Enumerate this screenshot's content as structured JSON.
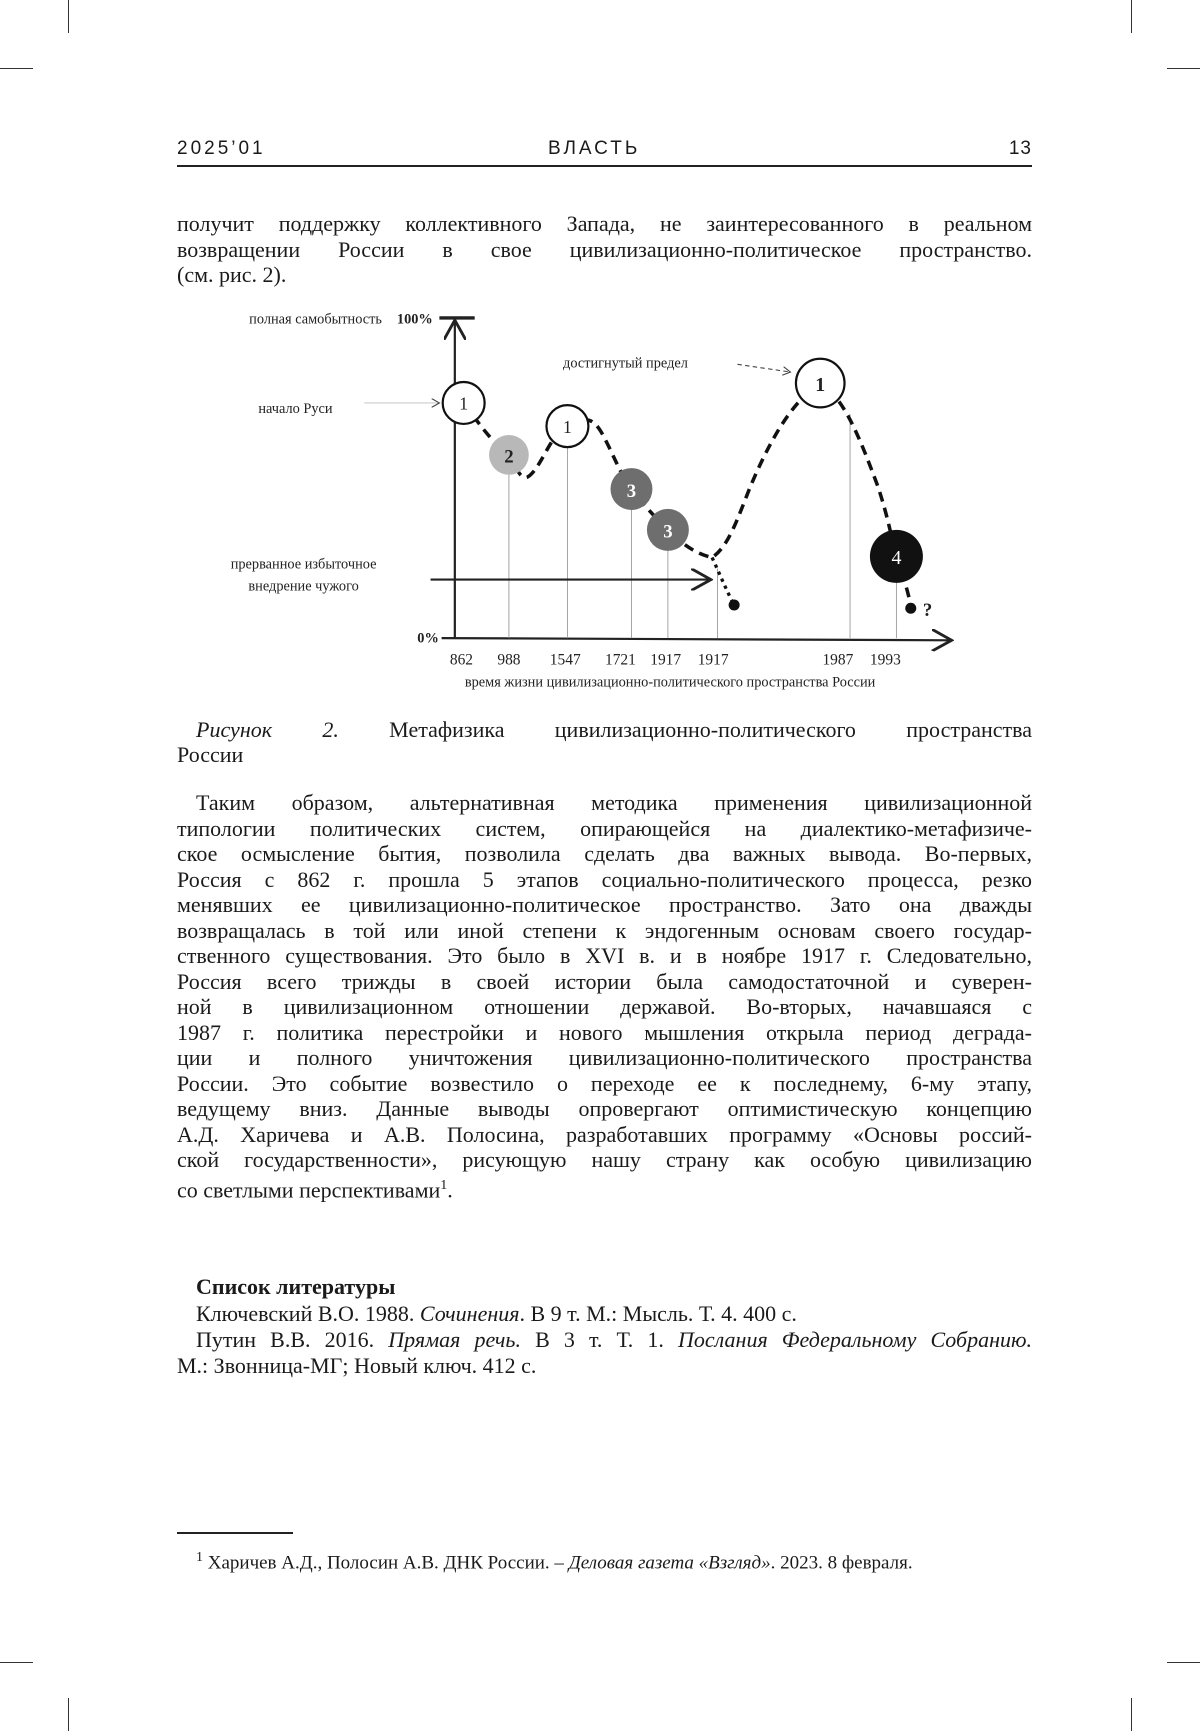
{
  "header": {
    "issue": "2025’01",
    "journal": "ВЛАСТЬ",
    "page": "13"
  },
  "intro_lines": [
    "получит поддержку коллективного Запада, не заинтересованного в реальном",
    "возвращении России в свое цивилизационно-политическое пространство.",
    "(см. рис. 2)."
  ],
  "figure": {
    "label_top": "полная самобытность",
    "label_100": "100%",
    "label_0": "0%",
    "label_start": "начало Руси",
    "label_peak": "достигнутый предел",
    "label_interrupted_1": "прерванное избыточное",
    "label_interrupted_2": "внедрение чужого",
    "question": "?",
    "x_axis_title": "время жизни цивилизационно-политического пространства России",
    "years": [
      "862",
      "988",
      "1547",
      "1721",
      "1917",
      "1917",
      "1987",
      "1993"
    ],
    "stages": [
      {
        "num": "1",
        "fill": "#ffffff"
      },
      {
        "num": "2",
        "fill": "#b8b8b8"
      },
      {
        "num": "1",
        "fill": "#ffffff"
      },
      {
        "num": "3",
        "fill": "#6e6e6e"
      },
      {
        "num": "3",
        "fill": "#6e6e6e"
      },
      {
        "num": "1",
        "fill": "#ffffff"
      },
      {
        "num": "4",
        "fill": "#111111"
      }
    ]
  },
  "caption": {
    "label": "Рисунок 2.",
    "text_1": "Метафизика цивилизационно-политического пространства",
    "text_2": "России"
  },
  "body_lines": [
    "Таким образом, альтернативная методика применения цивилизационной",
    "типологии политических систем, опирающейся на диалектико-метафизиче-",
    "ское осмысление бытия, позволила сделать два важных вывода. Во-первых,",
    "Россия с 862 г. прошла 5 этапов социально-политического процесса, резко",
    "менявших ее цивилизационно-политическое пространство. Зато она дважды",
    "возвращалась в той или иной степени к эндогенным основам своего государ-",
    "ственного существования. Это было в XVI в. и в ноябре 1917 г. Следовательно,",
    "Россия всего трижды в своей истории была самодостаточной и суверен-",
    "ной в цивилизационном отношении державой. Во-вторых, начавшаяся с",
    "1987 г. политика перестройки и нового мышления открыла период деграда-",
    "ции и полного уничтожения цивилизационно-политического пространства",
    "России. Это событие возвестило о переходе ее к последнему, 6-му этапу,",
    "ведущему вниз. Данные выводы опровергают оптимистическую концепцию",
    "А.Д. Харичева и А.В. Полосина, разработавших программу «Основы россий-",
    "ской государственности», рисующую нашу страну как особую цивилизацию",
    "со светлыми перспективами"
  ],
  "body_footnote_mark": "1",
  "references": {
    "heading": "Список литературы",
    "r1": {
      "a": "Ключевский В.О. 1988. ",
      "b": "Сочинения",
      "c": ". В 9 т. М.: Мысль. Т. 4. 400 с."
    },
    "r2": {
      "a": "Путин В.В. 2016. ",
      "b": "Прямая речь.",
      "c": " В 3 т. Т. 1. ",
      "d": "Послания Федеральному Собранию.",
      "e": "М.: Звонница-МГ; Новый ключ. 412 с."
    }
  },
  "footnote": {
    "mark": "1",
    "a": "Харичев А.Д., Полосин А.В. ДНК России. – ",
    "b": "Деловая газета «Взгляд»",
    "c": ". 2023. 8 февраля."
  }
}
